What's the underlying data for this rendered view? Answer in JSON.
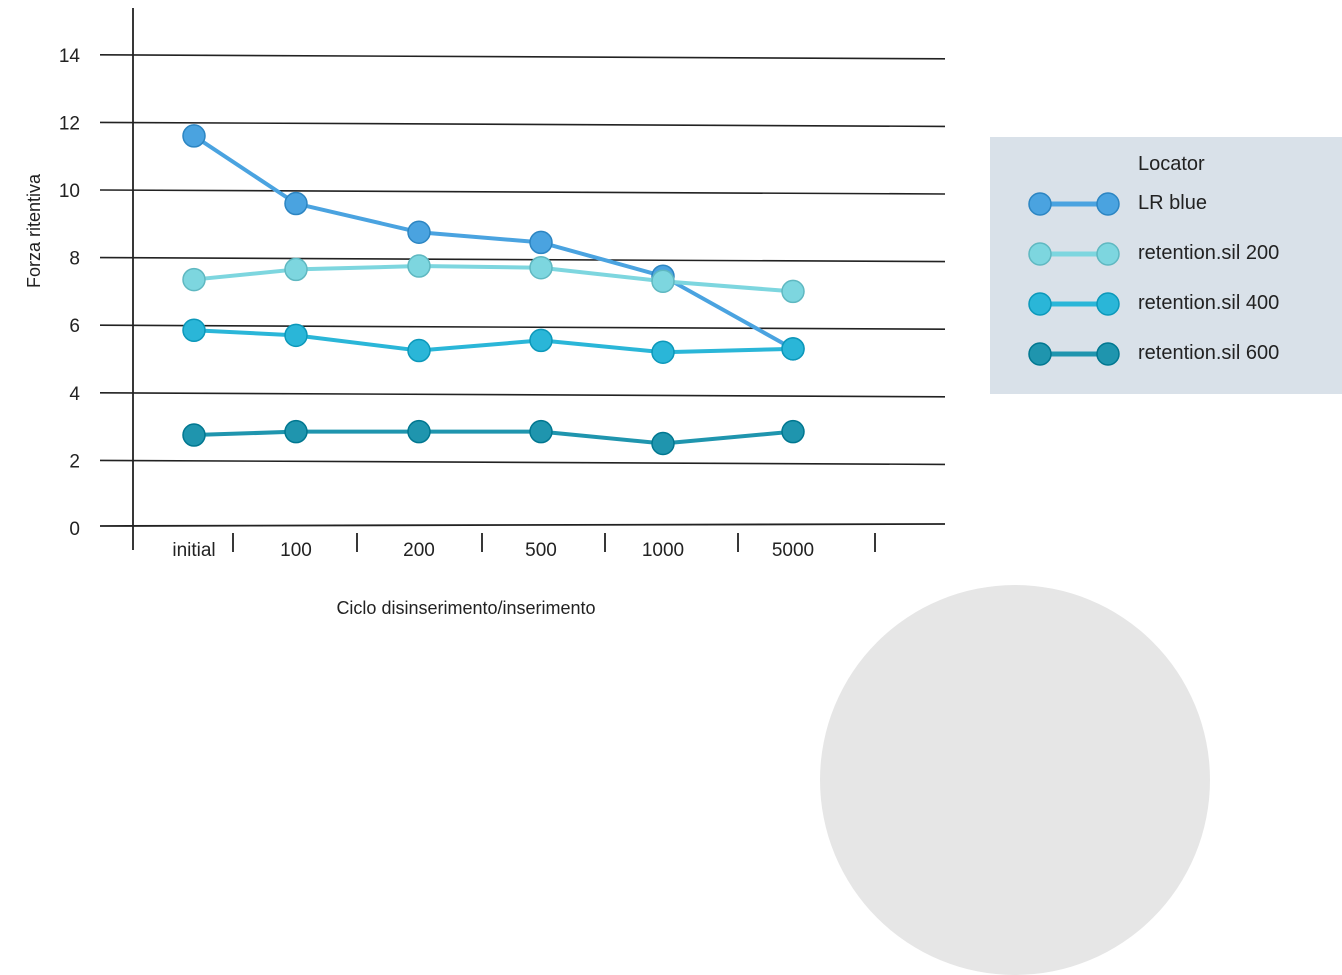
{
  "chart_data": {
    "type": "line",
    "categories": [
      "initial",
      "100",
      "200",
      "500",
      "1000",
      "5000"
    ],
    "xlabel": "Ciclo disinserimento/inserimento",
    "ylabel": "Forza ritentiva",
    "ylim": [
      0,
      14
    ],
    "yticks": [
      0,
      2,
      4,
      6,
      8,
      10,
      12,
      14
    ],
    "grid": "horizontal",
    "legend": {
      "title": "Locator",
      "placement": "right"
    },
    "series": [
      {
        "name": "LR blue",
        "color": "#4aa3e0",
        "values": [
          11.6,
          9.6,
          8.75,
          8.45,
          7.45,
          5.3
        ]
      },
      {
        "name": "retention.sil 200",
        "color": "#7dd6df",
        "values": [
          7.35,
          7.65,
          7.75,
          7.7,
          7.3,
          7.0
        ]
      },
      {
        "name": "retention.sil 400",
        "color": "#2ab6d8",
        "values": [
          5.85,
          5.7,
          5.25,
          5.55,
          5.2,
          5.3
        ]
      },
      {
        "name": "retention.sil 600",
        "color": "#1f95ae",
        "values": [
          2.75,
          2.85,
          2.85,
          2.85,
          2.5,
          2.85
        ]
      }
    ]
  }
}
